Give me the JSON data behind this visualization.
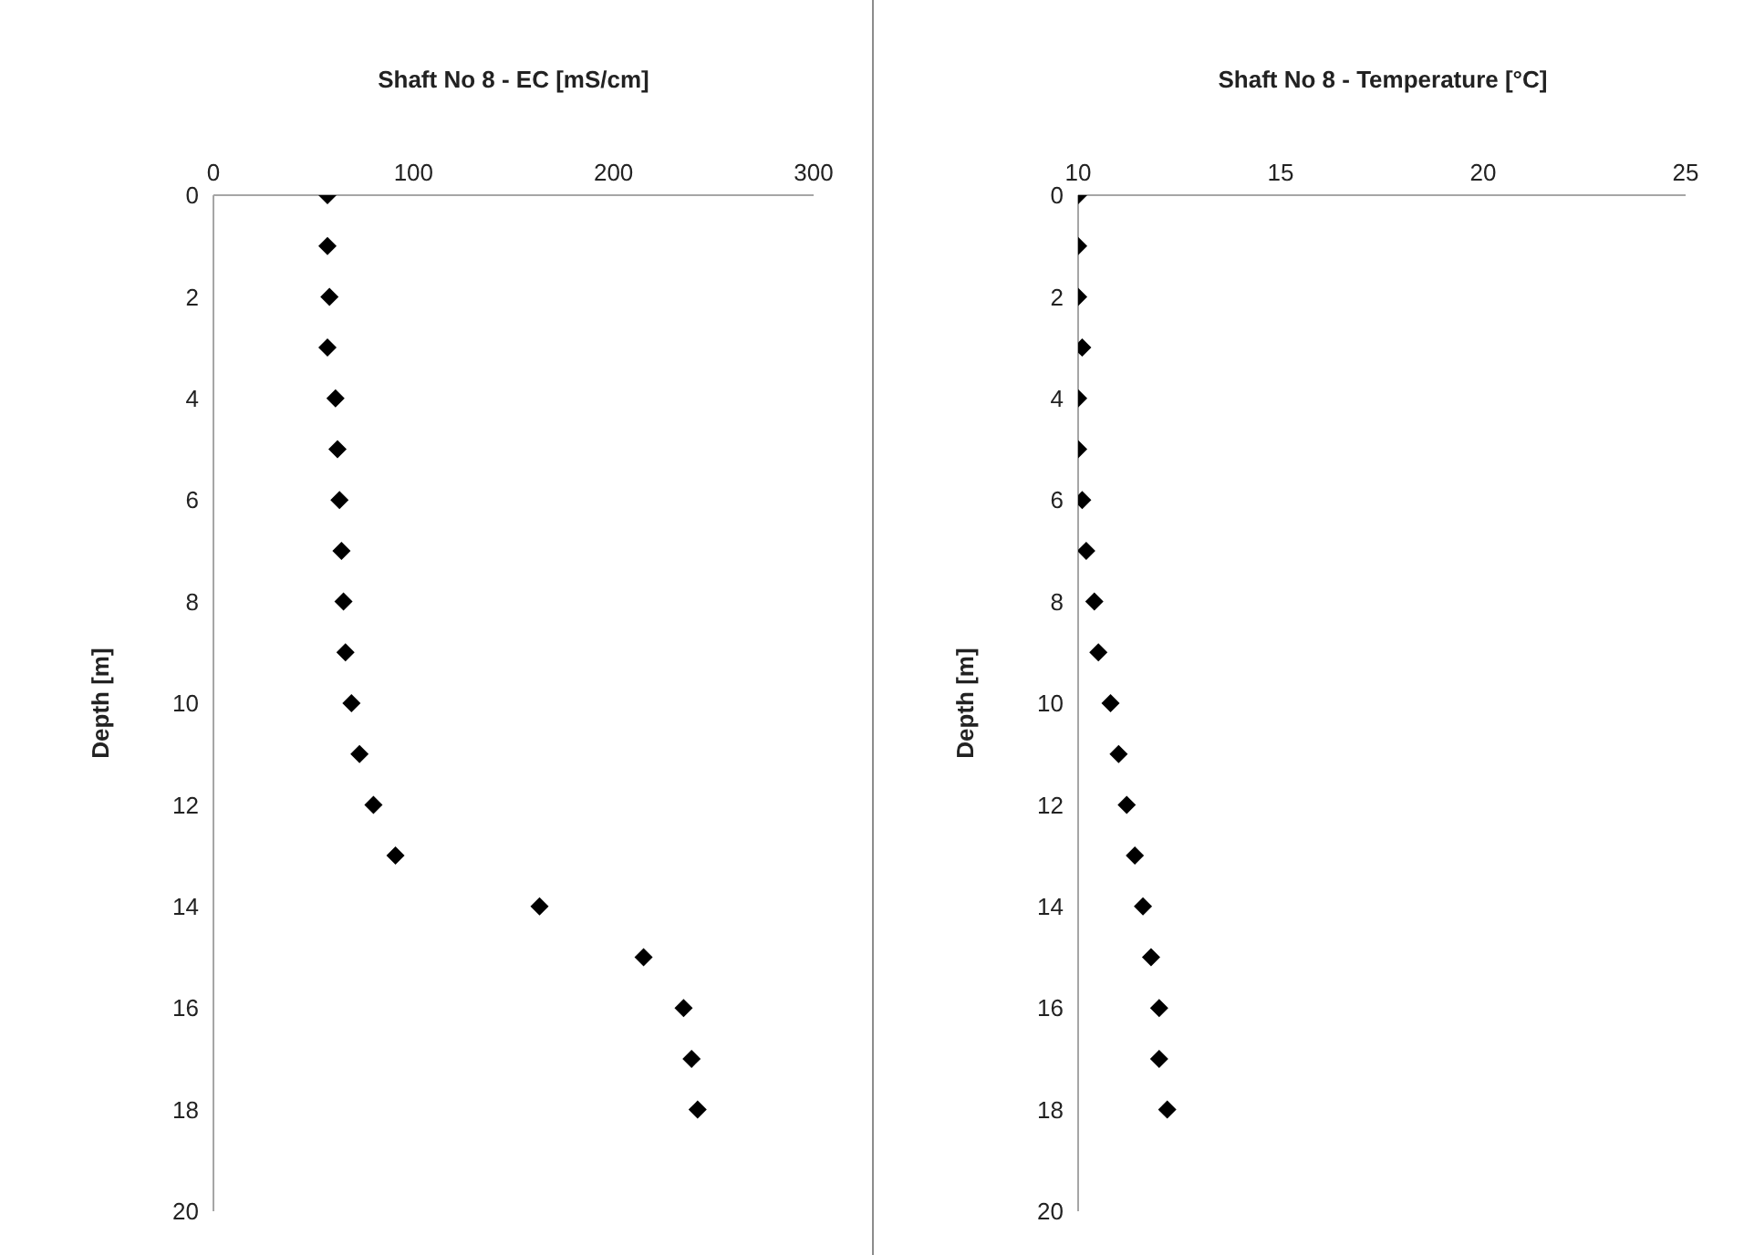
{
  "chart_data": [
    {
      "type": "scatter",
      "title": "Shaft No 8 - EC [mS/cm]",
      "ylabel": "Depth [m]",
      "x": [
        57,
        57,
        58,
        57,
        61,
        62,
        63,
        64,
        65,
        66,
        69,
        73,
        80,
        91,
        163,
        215,
        235,
        239,
        242
      ],
      "series": [
        {
          "color": "#000000",
          "values": [
            0,
            1,
            2,
            3,
            4,
            5,
            6,
            7,
            8,
            9,
            10,
            11,
            12,
            13,
            14,
            15,
            16,
            17,
            18
          ]
        }
      ],
      "xlim": [
        0,
        300
      ],
      "xticks": [
        0,
        100,
        200,
        300
      ],
      "ylim": [
        20,
        0
      ],
      "yticks": [
        0,
        2,
        4,
        6,
        8,
        10,
        12,
        14,
        16,
        18,
        20
      ],
      "marker": "diamond",
      "grid": false
    },
    {
      "type": "scatter",
      "title": "Shaft No 8 - Temperature [°C]",
      "ylabel": "Depth [m]",
      "x": [
        10,
        10,
        10,
        10.1,
        10,
        10,
        10.1,
        10.2,
        10.4,
        10.5,
        10.8,
        11.0,
        11.2,
        11.4,
        11.6,
        11.8,
        12.0,
        12.0,
        12.2
      ],
      "series": [
        {
          "color": "#000000",
          "values": [
            0,
            1,
            2,
            3,
            4,
            5,
            6,
            7,
            8,
            9,
            10,
            11,
            12,
            13,
            14,
            15,
            16,
            17,
            18
          ]
        }
      ],
      "xlim": [
        10,
        25
      ],
      "xticks": [
        10,
        15,
        20,
        25
      ],
      "ylim": [
        20,
        0
      ],
      "yticks": [
        0,
        2,
        4,
        6,
        8,
        10,
        12,
        14,
        16,
        18,
        20
      ],
      "marker": "diamond",
      "grid": false
    }
  ]
}
